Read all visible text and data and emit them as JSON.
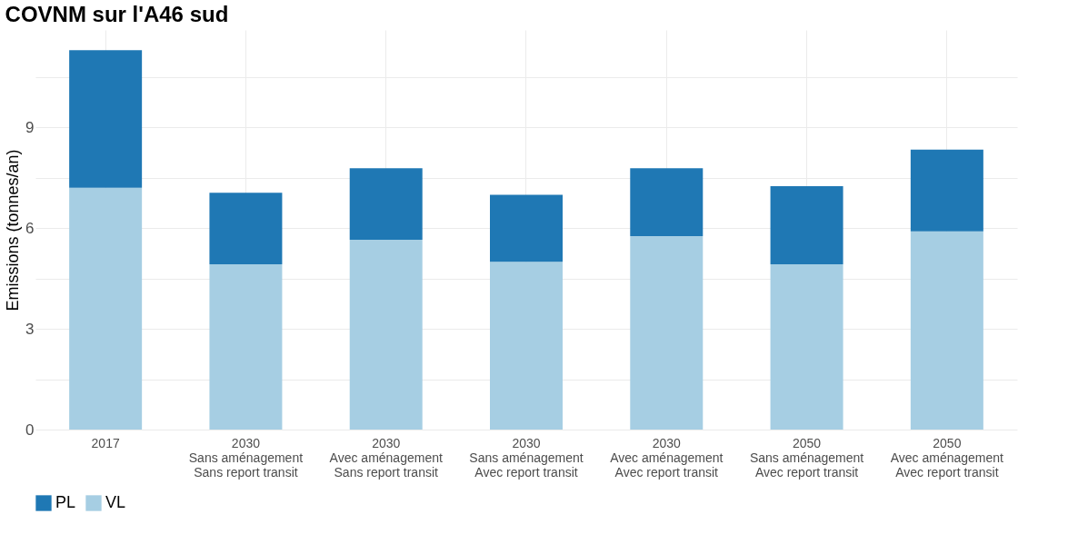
{
  "chart_data": {
    "type": "bar",
    "title": "COVNM sur l'A46 sud",
    "ylabel": "Emissions (tonnes/an)",
    "categories": [
      "2017",
      "2030\nSans aménagement\nSans report transit",
      "2030\nAvec aménagement\nSans report transit",
      "2030\nSans aménagement\nAvec report transit",
      "2030\nAvec aménagement\nAvec report transit",
      "2050\nSans aménagement\nAvec report transit",
      "2050\nAvec aménagement\nAvec report transit"
    ],
    "series": [
      {
        "name": "VL",
        "color": "#a6cee3",
        "values": [
          7.2,
          4.92,
          5.65,
          5.0,
          5.76,
          4.92,
          5.9
        ]
      },
      {
        "name": "PL",
        "color": "#1f78b4",
        "values": [
          4.1,
          2.13,
          2.13,
          1.99,
          2.02,
          2.33,
          2.44
        ]
      }
    ],
    "stacked": true,
    "ylim": [
      0,
      11.9
    ],
    "yticks": [
      0,
      {
        "value": 1.5,
        "label": null
      },
      3,
      {
        "value": 4.5,
        "label": null
      },
      6,
      {
        "value": 7.5,
        "label": null
      },
      9,
      {
        "value": 10.5,
        "label": null
      }
    ],
    "grid": true,
    "legend": "bottom"
  }
}
